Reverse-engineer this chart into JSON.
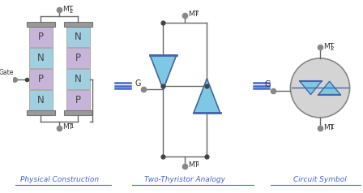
{
  "bg_color": "#ffffff",
  "p_color": "#c8b4d8",
  "n_color": "#a0d0e0",
  "thyristor_fill": "#7ec8e3",
  "circle_fill": "#d4d4d4",
  "wire_color": "#666666",
  "terminal_dot_color": "#888888",
  "label_color": "#4466cc",
  "text_color": "#333333",
  "cap_color": "#999999",
  "tri_edge_color": "#4466aa",
  "equiv_color": "#4466cc",
  "label1": "Physical Construction",
  "label2": "Two-Thyristor Analogy",
  "label3": "Circuit Symbol"
}
